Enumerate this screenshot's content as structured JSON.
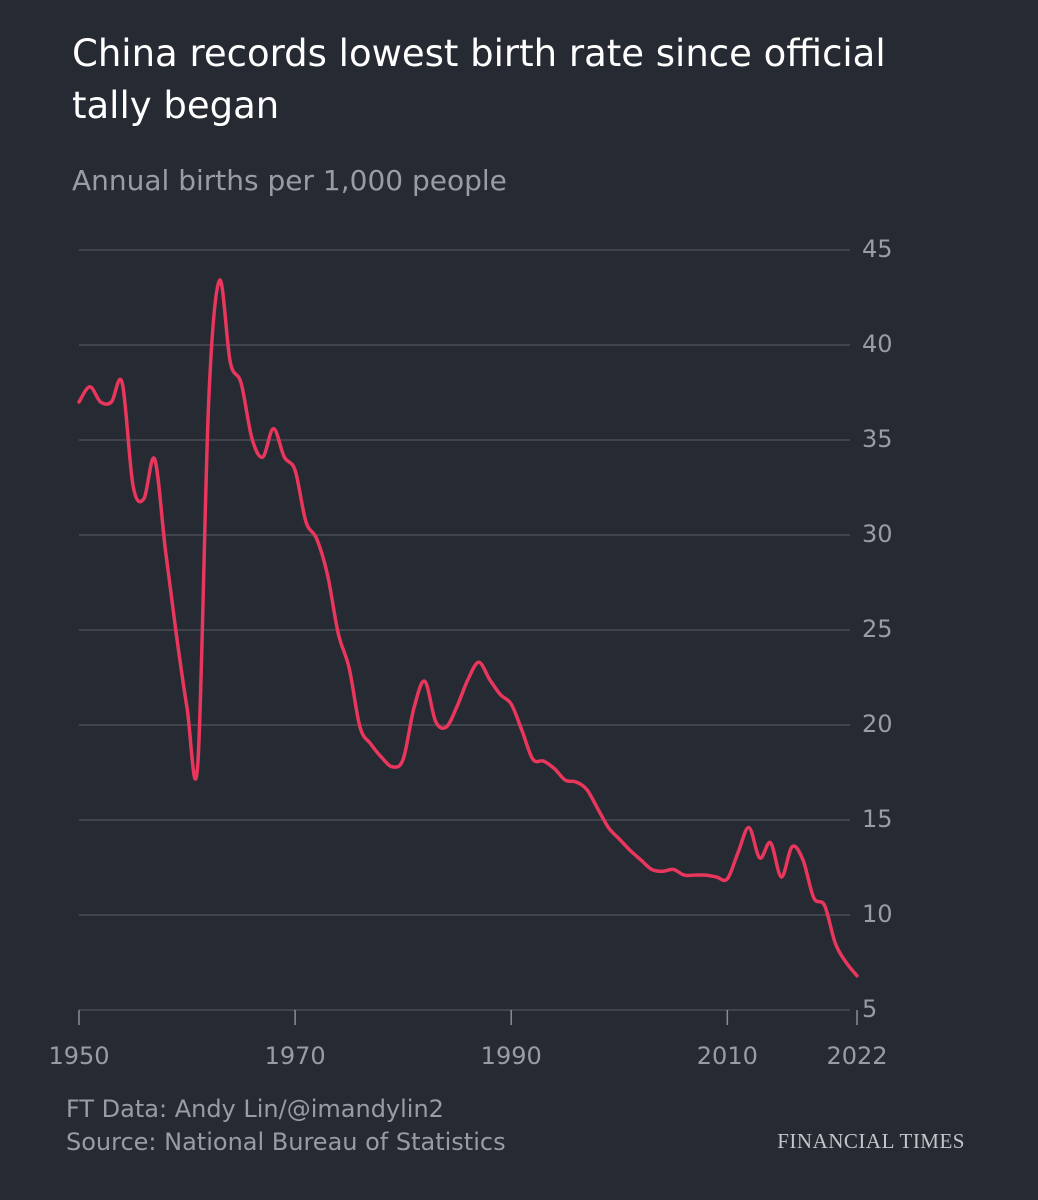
{
  "chart_data": {
    "type": "line",
    "title": "China records lowest birth rate since official tally began",
    "subtitle": "Annual births per 1,000 people",
    "source_lines": [
      "FT Data: Andy Lin/@imandylin2",
      "Source: National Bureau of Statistics"
    ],
    "brand": "FINANCIAL TIMES",
    "x": [
      1950,
      1951,
      1952,
      1953,
      1954,
      1955,
      1956,
      1957,
      1958,
      1959,
      1960,
      1961,
      1962,
      1963,
      1964,
      1965,
      1966,
      1967,
      1968,
      1969,
      1970,
      1971,
      1972,
      1973,
      1974,
      1975,
      1976,
      1977,
      1978,
      1979,
      1980,
      1981,
      1982,
      1983,
      1984,
      1985,
      1986,
      1987,
      1988,
      1989,
      1990,
      1991,
      1992,
      1993,
      1994,
      1995,
      1996,
      1997,
      1998,
      1999,
      2000,
      2001,
      2002,
      2003,
      2004,
      2005,
      2006,
      2007,
      2008,
      2009,
      2010,
      2011,
      2012,
      2013,
      2014,
      2015,
      2016,
      2017,
      2018,
      2019,
      2020,
      2021,
      2022
    ],
    "series": [
      {
        "name": "Birth rate",
        "color": "#e8365d",
        "values": [
          37.0,
          37.8,
          37.0,
          37.0,
          38.0,
          32.6,
          31.9,
          34.0,
          29.2,
          24.8,
          20.9,
          18.0,
          37.0,
          43.4,
          39.1,
          38.0,
          35.1,
          34.1,
          35.6,
          34.1,
          33.4,
          30.7,
          29.8,
          27.9,
          24.8,
          23.0,
          19.9,
          19.0,
          18.3,
          17.8,
          18.2,
          20.9,
          22.3,
          20.2,
          19.9,
          21.0,
          22.4,
          23.3,
          22.4,
          21.6,
          21.1,
          19.7,
          18.2,
          18.1,
          17.7,
          17.1,
          17.0,
          16.6,
          15.6,
          14.6,
          14.0,
          13.4,
          12.9,
          12.4,
          12.3,
          12.4,
          12.1,
          12.1,
          12.1,
          12.0,
          11.9,
          13.3,
          14.6,
          13.0,
          13.8,
          12.0,
          13.6,
          12.9,
          10.9,
          10.5,
          8.5,
          7.5,
          6.8
        ]
      }
    ],
    "xlim": [
      1950,
      2022
    ],
    "xticks": [
      1950,
      1970,
      1990,
      2010,
      2022
    ],
    "ylim": [
      5,
      45
    ],
    "yticks": [
      5,
      10,
      15,
      20,
      25,
      30,
      35,
      40,
      45
    ],
    "grid": true
  }
}
